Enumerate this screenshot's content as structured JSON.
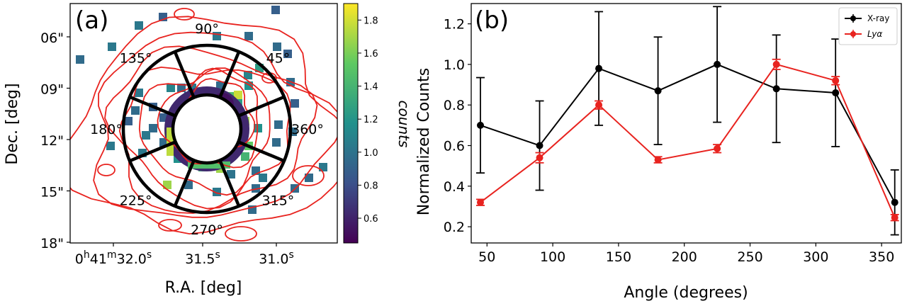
{
  "chart_data": [
    {
      "type": "heatmap",
      "panel_label": "(a)",
      "xlabel": "R.A. [deg]",
      "ylabel": "Dec. [deg]",
      "y_ticks": [
        "06\"",
        "09\"",
        "12\"",
        "15\"",
        "18\""
      ],
      "x_ticks": [
        {
          "main": "0",
          "sup1": "h",
          "mid": "41",
          "sup2": "m",
          "rest": "32.0",
          "sup3": "s"
        },
        {
          "main": "31.5",
          "sup1": "s"
        },
        {
          "main": "31.0",
          "sup1": "s"
        }
      ],
      "colorbar": {
        "label": "counts",
        "range": [
          0.45,
          1.9
        ],
        "ticks": [
          "1.8",
          "1.6",
          "1.4",
          "1.2",
          "1.0",
          "0.8",
          "0.6"
        ],
        "tick_values": [
          1.8,
          1.6,
          1.4,
          1.2,
          1.0,
          0.8,
          0.6
        ],
        "colors": [
          "#440154",
          "#3b528b",
          "#21918c",
          "#5ec962",
          "#fde725"
        ]
      },
      "angle_labels": [
        {
          "text": "90°",
          "angle": 90
        },
        {
          "text": "45°",
          "angle": 45
        },
        {
          "text": "135°",
          "angle": 135
        },
        {
          "text": "180°",
          "angle": 180
        },
        {
          "text": "360°",
          "angle": 0
        },
        {
          "text": "225°",
          "angle": 225
        },
        {
          "text": "315°",
          "angle": 315
        },
        {
          "text": "270°",
          "angle": 270
        }
      ],
      "contour_color": "#e8231f"
    },
    {
      "type": "line",
      "panel_label": "(b)",
      "xlabel": "Angle (degrees)",
      "ylabel": "Normalized Counts",
      "xlim": [
        38,
        365
      ],
      "ylim": [
        0.12,
        1.3
      ],
      "x_ticks": [
        50,
        100,
        150,
        200,
        250,
        300,
        350
      ],
      "y_ticks": [
        0.2,
        0.4,
        0.6,
        0.8,
        1.0,
        1.2
      ],
      "legend_position": "top-right",
      "series": [
        {
          "name": "X-ray",
          "color": "#000000",
          "x": [
            45,
            90,
            135,
            180,
            225,
            270,
            315,
            360
          ],
          "y": [
            0.7,
            0.6,
            0.98,
            0.87,
            1.0,
            0.88,
            0.86,
            0.32
          ],
          "err": [
            0.235,
            0.22,
            0.28,
            0.265,
            0.285,
            0.265,
            0.265,
            0.16
          ]
        },
        {
          "name": "Lyα",
          "color": "#e8231f",
          "x": [
            45,
            90,
            135,
            180,
            225,
            270,
            315,
            360
          ],
          "y": [
            0.32,
            0.54,
            0.8,
            0.53,
            0.585,
            1.0,
            0.92,
            0.245
          ],
          "err": [
            0.015,
            0.025,
            0.02,
            0.015,
            0.02,
            0.025,
            0.02,
            0.015
          ]
        }
      ]
    }
  ]
}
